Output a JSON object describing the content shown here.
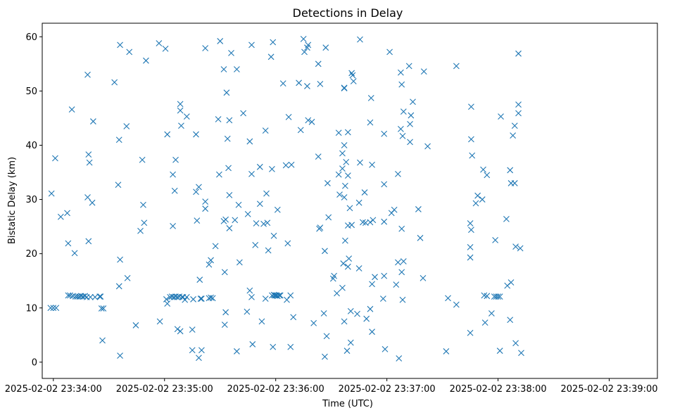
{
  "chart_data": {
    "type": "scatter",
    "title": "Detections in Delay",
    "xlabel": "Time (UTC)",
    "ylabel": "Bistatic Delay (km)",
    "marker": "x",
    "marker_color": "#1f77b4",
    "x_units": "seconds after 2025-02-02 23:34:00",
    "xlim": [
      -6,
      326
    ],
    "ylim": [
      -3,
      62.5
    ],
    "x_ticks": [
      {
        "value": 0,
        "label": "2025-02-02 23:34:00"
      },
      {
        "value": 60,
        "label": "2025-02-02 23:35:00"
      },
      {
        "value": 120,
        "label": "2025-02-02 23:36:00"
      },
      {
        "value": 180,
        "label": "2025-02-02 23:37:00"
      },
      {
        "value": 240,
        "label": "2025-02-02 23:38:00"
      },
      {
        "value": 300,
        "label": "2025-02-02 23:39:00"
      }
    ],
    "y_ticks": [
      {
        "value": 0,
        "label": "0"
      },
      {
        "value": 10,
        "label": "10"
      },
      {
        "value": 20,
        "label": "20"
      },
      {
        "value": 30,
        "label": "30"
      },
      {
        "value": 40,
        "label": "40"
      },
      {
        "value": 50,
        "label": "50"
      },
      {
        "value": 60,
        "label": "60"
      }
    ],
    "points": [
      [
        -1.5,
        10
      ],
      [
        0,
        10
      ],
      [
        1.5,
        10
      ],
      [
        -1,
        31.1
      ],
      [
        1,
        37.6
      ],
      [
        4,
        26.8
      ],
      [
        7.5,
        27.5
      ],
      [
        8,
        21.9
      ],
      [
        8,
        12.3
      ],
      [
        9,
        12.3
      ],
      [
        10,
        46.6
      ],
      [
        10.5,
        12.2
      ],
      [
        11.5,
        20.1
      ],
      [
        12,
        12.1
      ],
      [
        13,
        12.1
      ],
      [
        14,
        12.1
      ],
      [
        15,
        12.2
      ],
      [
        16,
        12.1
      ],
      [
        17,
        12.2
      ],
      [
        18,
        12
      ],
      [
        18.5,
        53
      ],
      [
        18.5,
        30.4
      ],
      [
        19,
        38.3
      ],
      [
        19,
        22.3
      ],
      [
        19.5,
        36.8
      ],
      [
        20,
        12
      ],
      [
        21,
        29.4
      ],
      [
        21.5,
        44.4
      ],
      [
        22.5,
        12
      ],
      [
        25,
        12.1
      ],
      [
        25.5,
        12.1
      ],
      [
        26,
        9.9
      ],
      [
        26.5,
        4
      ],
      [
        27,
        9.9
      ],
      [
        33,
        51.6
      ],
      [
        36,
        58.5
      ],
      [
        35.5,
        41
      ],
      [
        35,
        32.7
      ],
      [
        35.5,
        14
      ],
      [
        36,
        18.9
      ],
      [
        36,
        1.2
      ],
      [
        39.5,
        43.5
      ],
      [
        40,
        15.5
      ],
      [
        41,
        57.2
      ],
      [
        44.5,
        6.8
      ],
      [
        47,
        24.2
      ],
      [
        48,
        37.3
      ],
      [
        48.5,
        29
      ],
      [
        49,
        25.7
      ],
      [
        50,
        55.6
      ],
      [
        57,
        58.8
      ],
      [
        57.5,
        7.5
      ],
      [
        60.5,
        57.8
      ],
      [
        61,
        11.6
      ],
      [
        61.5,
        10.8
      ],
      [
        61.5,
        42
      ],
      [
        63,
        12
      ],
      [
        64,
        12.1
      ],
      [
        64.5,
        34.6
      ],
      [
        64.5,
        25.1
      ],
      [
        65,
        12
      ],
      [
        65.5,
        31.6
      ],
      [
        66,
        12.1
      ],
      [
        66,
        37.3
      ],
      [
        67,
        12
      ],
      [
        67,
        6.1
      ],
      [
        68,
        12.1
      ],
      [
        68.5,
        5.7
      ],
      [
        68.5,
        47.6
      ],
      [
        68.5,
        46.4
      ],
      [
        69,
        43.6
      ],
      [
        69.5,
        12
      ],
      [
        70,
        12
      ],
      [
        71,
        11.5
      ],
      [
        72,
        45.3
      ],
      [
        72,
        12
      ],
      [
        75,
        2.2
      ],
      [
        75,
        6
      ],
      [
        75.5,
        11.6
      ],
      [
        77,
        42
      ],
      [
        77,
        31.4
      ],
      [
        77.5,
        26.1
      ],
      [
        78.5,
        0.8
      ],
      [
        78.5,
        32.3
      ],
      [
        79,
        15.2
      ],
      [
        79.5,
        11.7
      ],
      [
        80,
        2.2
      ],
      [
        80,
        11.7
      ],
      [
        82,
        57.9
      ],
      [
        82,
        29.6
      ],
      [
        82,
        28.3
      ],
      [
        84,
        11.8
      ],
      [
        84,
        18
      ],
      [
        85,
        11.9
      ],
      [
        85,
        18.8
      ],
      [
        86,
        11.8
      ],
      [
        87.5,
        21.4
      ],
      [
        89,
        44.8
      ],
      [
        89.5,
        34.6
      ],
      [
        90,
        59.2
      ],
      [
        92,
        54
      ],
      [
        92,
        26
      ],
      [
        92.5,
        16.6
      ],
      [
        92.5,
        6.9
      ],
      [
        93,
        9.2
      ],
      [
        93,
        26.3
      ],
      [
        93.5,
        49.7
      ],
      [
        94,
        41.2
      ],
      [
        94.5,
        35.8
      ],
      [
        95,
        44.6
      ],
      [
        95,
        30.8
      ],
      [
        95,
        24.7
      ],
      [
        96,
        57
      ],
      [
        98,
        26.2
      ],
      [
        99,
        54
      ],
      [
        99,
        2
      ],
      [
        100,
        29
      ],
      [
        100.5,
        18.4
      ],
      [
        102.5,
        45.9
      ],
      [
        104.5,
        9.3
      ],
      [
        105,
        27.3
      ],
      [
        106,
        40.7
      ],
      [
        106,
        13.2
      ],
      [
        107,
        58.5
      ],
      [
        107,
        34.7
      ],
      [
        107,
        12
      ],
      [
        107.5,
        3.3
      ],
      [
        109,
        21.6
      ],
      [
        109.5,
        25.6
      ],
      [
        111.5,
        29.2
      ],
      [
        111.5,
        36
      ],
      [
        112.5,
        7.5
      ],
      [
        113.5,
        25.5
      ],
      [
        114.5,
        42.7
      ],
      [
        114.5,
        11.7
      ],
      [
        115,
        31.1
      ],
      [
        115.5,
        25.7
      ],
      [
        116,
        20.6
      ],
      [
        117.5,
        56.3
      ],
      [
        118,
        35.6
      ],
      [
        118,
        12.3
      ],
      [
        118.5,
        59
      ],
      [
        118.5,
        2.8
      ],
      [
        119,
        12.4
      ],
      [
        119,
        23.3
      ],
      [
        119.5,
        12.3
      ],
      [
        120,
        12.3
      ],
      [
        120.5,
        12.3
      ],
      [
        121,
        12.2
      ],
      [
        121,
        28.1
      ],
      [
        122,
        12.3
      ],
      [
        122.5,
        12.3
      ],
      [
        124,
        51.4
      ],
      [
        125.5,
        36.3
      ],
      [
        126,
        11.5
      ],
      [
        126.5,
        21.9
      ],
      [
        127,
        45.2
      ],
      [
        128,
        12.3
      ],
      [
        128,
        2.8
      ],
      [
        128.5,
        36.4
      ],
      [
        129.5,
        8.3
      ],
      [
        132.5,
        51.5
      ],
      [
        133.5,
        42.8
      ],
      [
        135,
        59.6
      ],
      [
        135.5,
        57.2
      ],
      [
        137,
        50.9
      ],
      [
        137,
        58
      ],
      [
        137.5,
        44.6
      ],
      [
        137.5,
        58.5
      ],
      [
        139.5,
        44.3
      ],
      [
        140.5,
        7.2
      ],
      [
        143,
        55
      ],
      [
        143,
        37.9
      ],
      [
        143.5,
        24.6
      ],
      [
        144,
        24.8
      ],
      [
        144,
        51.3
      ],
      [
        146,
        9
      ],
      [
        146.5,
        20.5
      ],
      [
        146.5,
        1
      ],
      [
        147,
        58
      ],
      [
        147.5,
        4.8
      ],
      [
        148,
        33
      ],
      [
        148.5,
        26.7
      ],
      [
        151,
        15.4
      ],
      [
        151.5,
        15.9
      ],
      [
        153,
        12.7
      ],
      [
        154,
        34.6
      ],
      [
        154,
        42.3
      ],
      [
        154.5,
        30.9
      ],
      [
        156,
        38.5
      ],
      [
        156,
        35.7
      ],
      [
        156,
        13.7
      ],
      [
        156.5,
        18.2
      ],
      [
        157,
        50.6
      ],
      [
        157,
        50.5
      ],
      [
        157,
        40
      ],
      [
        157,
        30.4
      ],
      [
        157,
        7.5
      ],
      [
        157.5,
        32.5
      ],
      [
        157.5,
        22.4
      ],
      [
        158,
        36.9
      ],
      [
        158.5,
        2.1
      ],
      [
        159,
        34.4
      ],
      [
        159,
        25.2
      ],
      [
        159,
        42.4
      ],
      [
        159,
        17.6
      ],
      [
        159.5,
        19.1
      ],
      [
        160,
        28.4
      ],
      [
        160.5,
        9.4
      ],
      [
        160.5,
        3.6
      ],
      [
        161,
        53.3
      ],
      [
        161,
        25.3
      ],
      [
        161.5,
        52.9
      ],
      [
        162,
        51.8
      ],
      [
        164,
        8.9
      ],
      [
        165,
        29.4
      ],
      [
        165,
        17.3
      ],
      [
        165.5,
        36.8
      ],
      [
        165.5,
        59.5
      ],
      [
        167,
        25.8
      ],
      [
        168,
        31.3
      ],
      [
        168.5,
        25.7
      ],
      [
        169,
        8
      ],
      [
        171,
        9.8
      ],
      [
        171,
        25.8
      ],
      [
        171,
        44.2
      ],
      [
        171.5,
        48.7
      ],
      [
        172,
        14.4
      ],
      [
        172,
        5.6
      ],
      [
        172,
        36.4
      ],
      [
        172.5,
        26.2
      ],
      [
        173.5,
        15.7
      ],
      [
        178,
        11.7
      ],
      [
        178.5,
        32.8
      ],
      [
        178.5,
        25.9
      ],
      [
        178.5,
        42.1
      ],
      [
        178.5,
        15.9
      ],
      [
        179,
        2.4
      ],
      [
        181.5,
        57.2
      ],
      [
        182.5,
        27.5
      ],
      [
        184,
        28.1
      ],
      [
        185,
        14.3
      ],
      [
        186,
        18.4
      ],
      [
        186,
        34.7
      ],
      [
        186.5,
        0.7
      ],
      [
        187.5,
        53.4
      ],
      [
        187.5,
        43
      ],
      [
        188,
        51.2
      ],
      [
        188,
        16.6
      ],
      [
        188,
        24.6
      ],
      [
        188.5,
        41.7
      ],
      [
        188.5,
        11.5
      ],
      [
        189,
        46.2
      ],
      [
        189,
        18.6
      ],
      [
        192,
        54.6
      ],
      [
        192.5,
        43.9
      ],
      [
        192.5,
        40.6
      ],
      [
        193,
        45.5
      ],
      [
        194,
        48
      ],
      [
        197,
        28.2
      ],
      [
        198,
        22.9
      ],
      [
        199.5,
        15.5
      ],
      [
        200,
        53.6
      ],
      [
        202,
        39.8
      ],
      [
        212,
        2
      ],
      [
        213,
        11.8
      ],
      [
        217.5,
        10.6
      ],
      [
        217.5,
        54.6
      ],
      [
        225,
        5.4
      ],
      [
        225,
        19.3
      ],
      [
        225,
        21.2
      ],
      [
        225,
        25.6
      ],
      [
        225.5,
        41.1
      ],
      [
        225.5,
        24.4
      ],
      [
        225.5,
        47.1
      ],
      [
        226,
        38.1
      ],
      [
        228,
        29.3
      ],
      [
        229,
        30.7
      ],
      [
        231.5,
        30
      ],
      [
        232,
        35.5
      ],
      [
        232.5,
        12.3
      ],
      [
        233,
        7.3
      ],
      [
        234,
        12.2
      ],
      [
        234,
        34.5
      ],
      [
        236.5,
        9
      ],
      [
        238.5,
        22.5
      ],
      [
        238,
        12.1
      ],
      [
        239,
        12.1
      ],
      [
        240,
        12.1
      ],
      [
        241,
        12.1
      ],
      [
        241,
        2.1
      ],
      [
        241.5,
        45.3
      ],
      [
        244.5,
        26.4
      ],
      [
        245,
        14.1
      ],
      [
        246.5,
        35.4
      ],
      [
        246.5,
        7.8
      ],
      [
        247,
        33
      ],
      [
        247,
        14.7
      ],
      [
        248,
        41.8
      ],
      [
        249,
        33
      ],
      [
        249,
        43.6
      ],
      [
        249.5,
        3.5
      ],
      [
        249.5,
        21.3
      ],
      [
        251,
        47.5
      ],
      [
        251,
        56.9
      ],
      [
        251,
        45.9
      ],
      [
        252,
        21
      ],
      [
        252.5,
        1.7
      ]
    ]
  }
}
